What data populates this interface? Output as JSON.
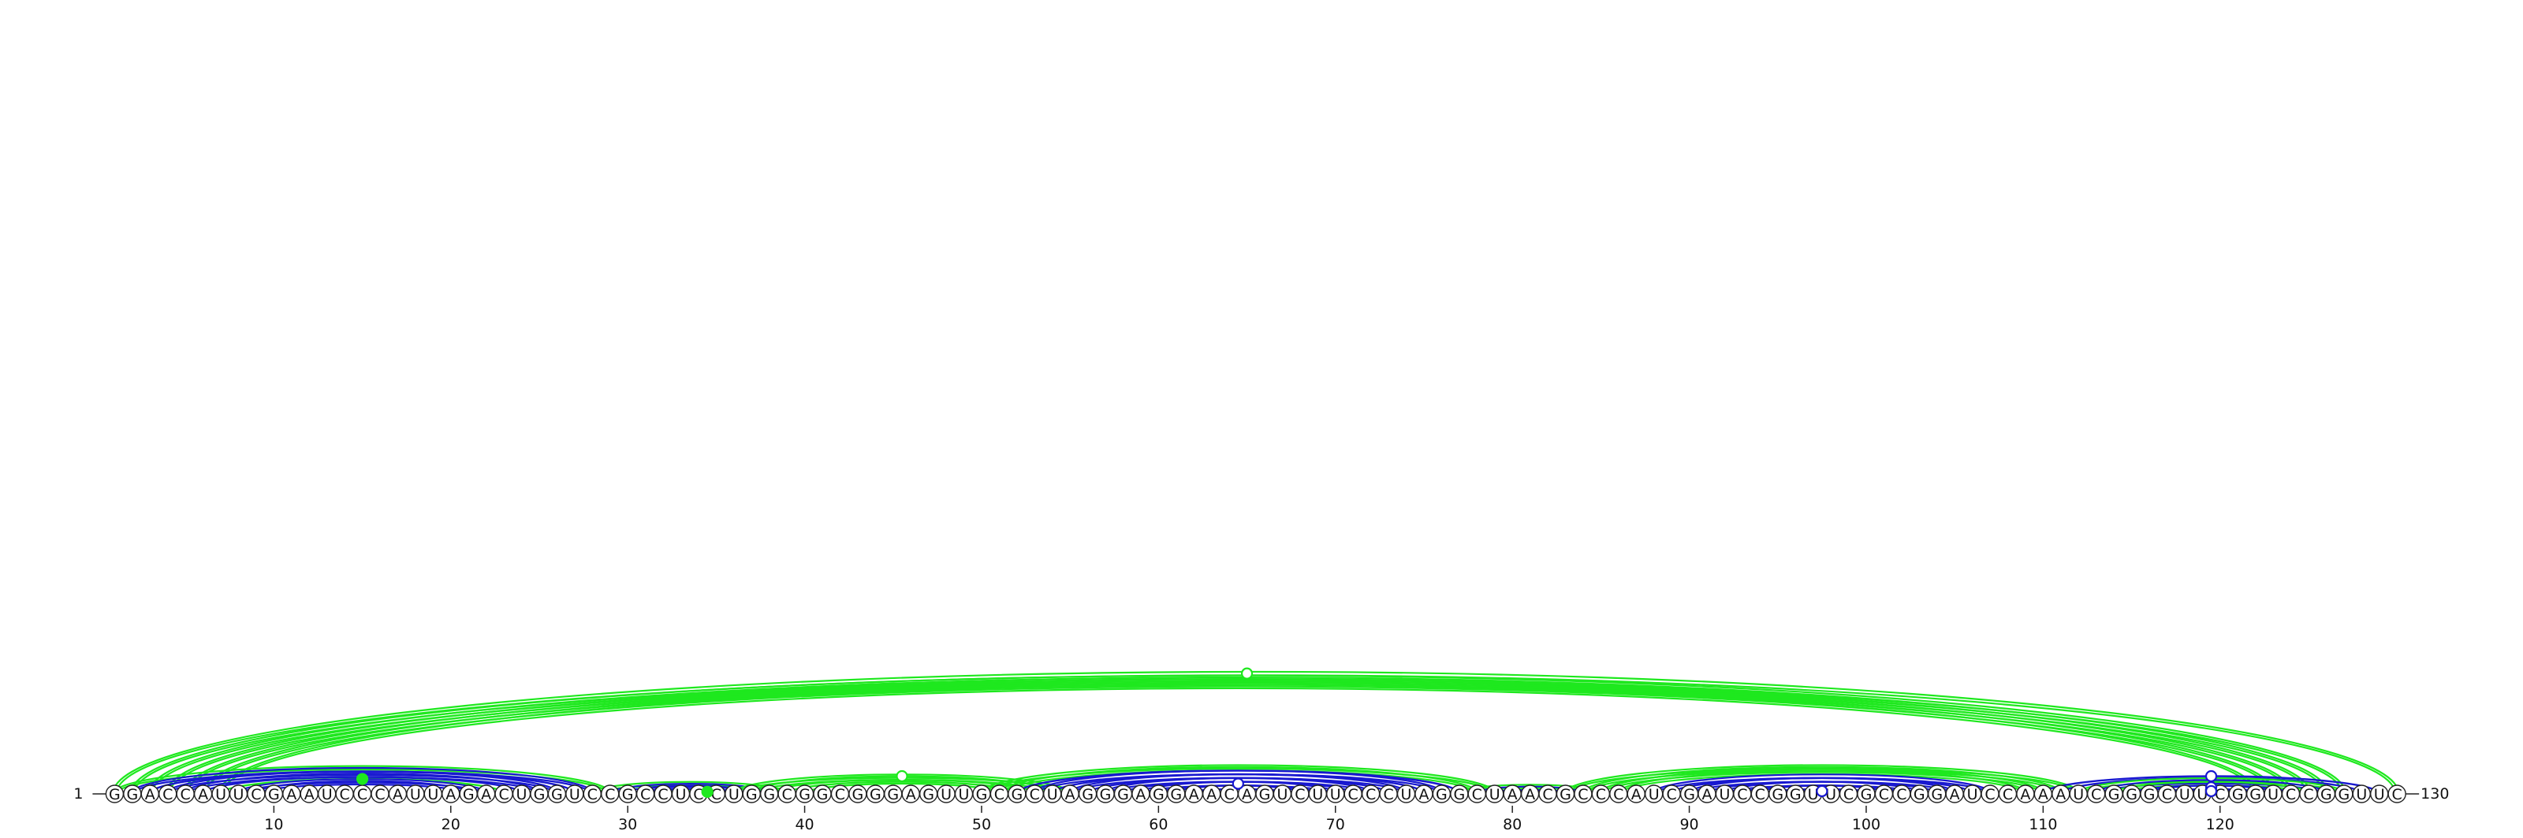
{
  "chart_data": {
    "type": "arc-diagram",
    "sequence": "GGACCAUUCGAAUCCCAUUAGACUGGUCCGCCUCCUGGCGGCGGGAGUUGCGCUAGGGAGGAACAGUCUUCCCUAGGCUAACGCCCAUCGAUCCGGUUCGCCGGAUCCAAAUCGGGCUUCGGUCCGGUUC",
    "start_label": "1",
    "end_label": "130",
    "ticks": [
      10,
      20,
      30,
      40,
      50,
      60,
      70,
      80,
      90,
      100,
      110,
      120
    ],
    "colors": {
      "green": "#1ee81e",
      "blue": "#1818d0"
    },
    "arcs": [
      {
        "i": 1,
        "j": 130,
        "color": "green",
        "double": true,
        "marker": "open",
        "mpos": 65
      },
      {
        "i": 2,
        "j": 127,
        "color": "green",
        "double": true
      },
      {
        "i": 3,
        "j": 126,
        "color": "green",
        "double": true
      },
      {
        "i": 4,
        "j": 125,
        "color": "green",
        "double": true
      },
      {
        "i": 5,
        "j": 124,
        "color": "green",
        "double": true
      },
      {
        "i": 6,
        "j": 123,
        "color": "green",
        "double": true
      },
      {
        "i": 7,
        "j": 122,
        "color": "green",
        "double": true
      },
      {
        "i": 1,
        "j": 29,
        "color": "green",
        "double": true
      },
      {
        "i": 2,
        "j": 28,
        "color": "blue",
        "double": true
      },
      {
        "i": 3,
        "j": 27,
        "color": "blue",
        "double": false
      },
      {
        "i": 4,
        "j": 26,
        "color": "blue",
        "double": true
      },
      {
        "i": 5,
        "j": 25,
        "color": "blue",
        "double": true
      },
      {
        "i": 6,
        "j": 24,
        "color": "blue",
        "double": false
      },
      {
        "i": 7,
        "j": 23,
        "color": "green",
        "double": false,
        "marker": "filled",
        "mpos": 15
      },
      {
        "i": 8,
        "j": 22,
        "color": "blue",
        "double": true
      },
      {
        "i": 9,
        "j": 21,
        "color": "blue",
        "double": true
      },
      {
        "i": 28,
        "j": 39,
        "color": "green",
        "double": true
      },
      {
        "i": 29,
        "j": 38,
        "color": "blue",
        "double": true
      },
      {
        "i": 30,
        "j": 37,
        "color": "blue",
        "double": true
      },
      {
        "i": 31,
        "j": 36,
        "color": "blue",
        "double": false
      },
      {
        "i": 32,
        "j": 35,
        "color": "green",
        "double": false,
        "marker": "filled",
        "mpos": 34.5
      },
      {
        "i": 36,
        "j": 55,
        "color": "green",
        "double": true,
        "marker": "open",
        "mpos": 45.5
      },
      {
        "i": 37,
        "j": 54,
        "color": "green",
        "double": true
      },
      {
        "i": 38,
        "j": 53,
        "color": "green",
        "double": false
      },
      {
        "i": 39,
        "j": 52,
        "color": "green",
        "double": false
      },
      {
        "i": 40,
        "j": 51,
        "color": "green",
        "double": false
      },
      {
        "i": 50,
        "j": 79,
        "color": "green",
        "double": true
      },
      {
        "i": 51,
        "j": 78,
        "color": "green",
        "double": true
      },
      {
        "i": 52,
        "j": 77,
        "color": "blue",
        "double": false
      },
      {
        "i": 53,
        "j": 76,
        "color": "blue",
        "double": true
      },
      {
        "i": 54,
        "j": 75,
        "color": "blue",
        "double": false
      },
      {
        "i": 55,
        "j": 74,
        "color": "blue",
        "double": true
      },
      {
        "i": 56,
        "j": 73,
        "color": "blue",
        "double": false
      },
      {
        "i": 57,
        "j": 72,
        "color": "blue",
        "double": true
      },
      {
        "i": 58,
        "j": 71,
        "color": "blue",
        "double": false
      },
      {
        "i": 59,
        "j": 70,
        "color": "blue",
        "double": true,
        "marker": "open",
        "mpos": 64.5
      },
      {
        "i": 60,
        "j": 69,
        "color": "blue",
        "double": false
      },
      {
        "i": 61,
        "j": 68,
        "color": "blue",
        "double": true
      },
      {
        "i": 62,
        "j": 67,
        "color": "blue",
        "double": false
      },
      {
        "i": 77,
        "j": 85,
        "color": "green",
        "double": true
      },
      {
        "i": 78,
        "j": 84,
        "color": "blue",
        "double": true
      },
      {
        "i": 79,
        "j": 83,
        "color": "blue",
        "double": false
      },
      {
        "i": 83,
        "j": 112,
        "color": "green",
        "double": true
      },
      {
        "i": 84,
        "j": 111,
        "color": "green",
        "double": true
      },
      {
        "i": 85,
        "j": 110,
        "color": "green",
        "double": true
      },
      {
        "i": 86,
        "j": 109,
        "color": "green",
        "double": true
      },
      {
        "i": 88,
        "j": 107,
        "color": "blue",
        "double": true
      },
      {
        "i": 89,
        "j": 106,
        "color": "blue",
        "double": false
      },
      {
        "i": 90,
        "j": 105,
        "color": "blue",
        "double": true
      },
      {
        "i": 91,
        "j": 104,
        "color": "blue",
        "double": false
      },
      {
        "i": 92,
        "j": 103,
        "color": "blue",
        "double": true
      },
      {
        "i": 93,
        "j": 102,
        "color": "blue",
        "double": false
      },
      {
        "i": 94,
        "j": 101,
        "color": "blue",
        "double": true
      },
      {
        "i": 95,
        "j": 100,
        "color": "blue",
        "double": false
      },
      {
        "i": 96,
        "j": 99,
        "color": "blue",
        "double": true,
        "marker": "open",
        "mpos": 97.5
      },
      {
        "i": 110,
        "j": 129,
        "color": "blue",
        "double": false,
        "marker": "open",
        "mpos": 119.5
      },
      {
        "i": 111,
        "j": 128,
        "color": "blue",
        "double": false
      },
      {
        "i": 112,
        "j": 127,
        "color": "green",
        "double": true
      },
      {
        "i": 113,
        "j": 126,
        "color": "blue",
        "double": true
      },
      {
        "i": 114,
        "j": 125,
        "color": "green",
        "double": true
      },
      {
        "i": 115,
        "j": 124,
        "color": "blue",
        "double": false
      },
      {
        "i": 116,
        "j": 123,
        "color": "blue",
        "double": true,
        "marker": "open",
        "mpos": 119.5
      },
      {
        "i": 117,
        "j": 122,
        "color": "blue",
        "double": false
      },
      {
        "i": 118,
        "j": 121,
        "color": "blue",
        "double": true,
        "marker": "open",
        "mpos": 119.5
      }
    ]
  }
}
